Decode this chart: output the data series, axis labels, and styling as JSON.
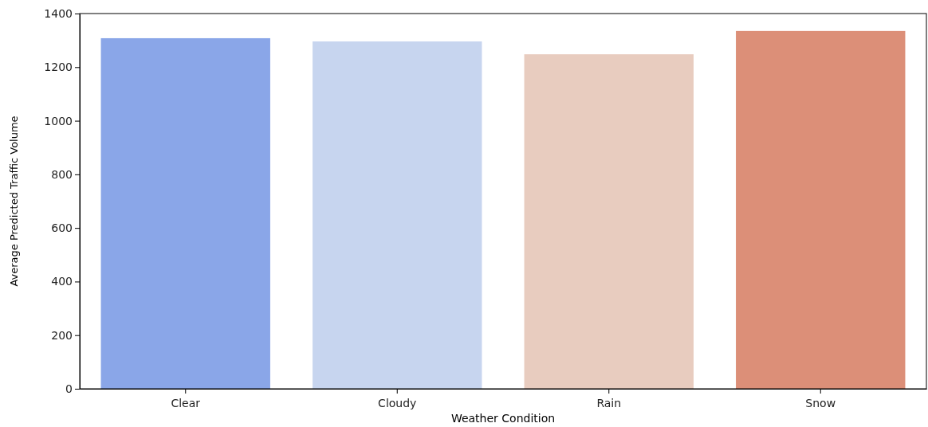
{
  "chart_data": {
    "type": "bar",
    "xlabel": "Weather Condition",
    "ylabel": "Average Predicted Traffic Volume",
    "categories": [
      "Clear",
      "Cloudy",
      "Rain",
      "Snow"
    ],
    "values": [
      1308,
      1296,
      1248,
      1335
    ],
    "colors": [
      "#8aa6e8",
      "#c7d5ef",
      "#e8ccbf",
      "#dc8f78"
    ],
    "ylim": [
      0,
      1400
    ],
    "yticks": [
      0,
      200,
      400,
      600,
      800,
      1000,
      1200,
      1400
    ],
    "grid": false,
    "legend": false
  }
}
